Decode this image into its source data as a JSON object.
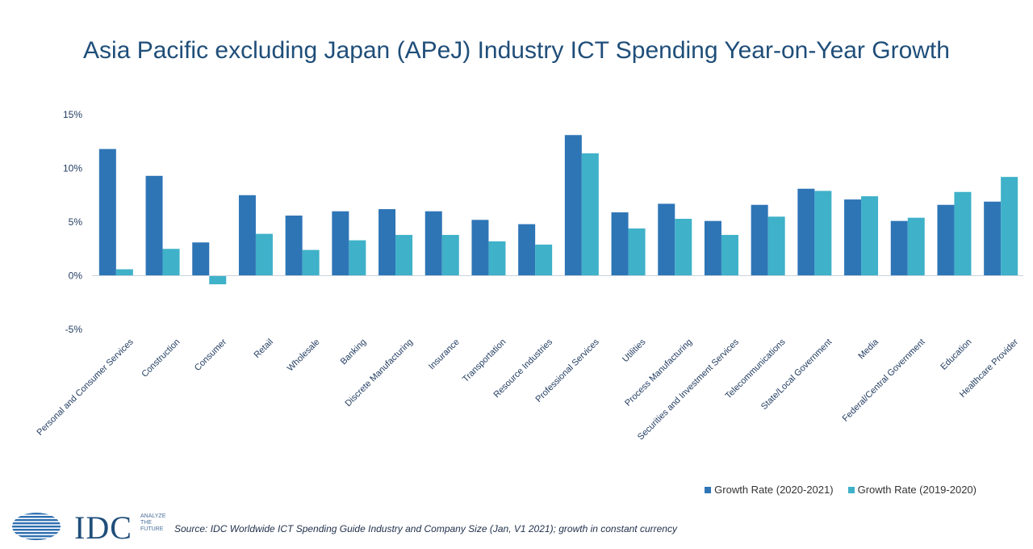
{
  "title": "Asia Pacific excluding Japan (APeJ) Industry ICT Spending Year-on-Year Growth",
  "source": "Source: IDC Worldwide ICT Spending Guide Industry and Company Size (Jan, V1 2021); growth in constant currency",
  "brand": {
    "logo_text": "IDC",
    "tagline_lines": [
      "ANALYZE",
      "THE",
      "FUTURE"
    ]
  },
  "legend": [
    {
      "label": "Growth Rate (2020-2021)",
      "color": "#2e75b6"
    },
    {
      "label": "Growth Rate (2019-2020)",
      "color": "#3fb1c9"
    }
  ],
  "chart_data": {
    "type": "bar",
    "title": "Asia Pacific excluding Japan (APeJ) Industry ICT Spending Year-on-Year Growth",
    "xlabel": "",
    "ylabel": "",
    "ylim": [
      -5,
      15
    ],
    "yticks": [
      15,
      10,
      5,
      0,
      -5
    ],
    "ytick_labels": [
      "15%",
      "10%",
      "5%",
      "0%",
      "-5%"
    ],
    "grid": false,
    "legend_position": "bottom-right",
    "categories": [
      "Personal and Consumer Services",
      "Construction",
      "Consumer",
      "Retail",
      "Wholesale",
      "Banking",
      "Discrete Manufacturing",
      "Insurance",
      "Transportation",
      "Resource Industries",
      "Professional Services",
      "Utilities",
      "Process Manufacturing",
      "Securities and Investment Services",
      "Telecommunications",
      "State/Local Government",
      "Media",
      "Federal/Central Government",
      "Education",
      "Healthcare Provider"
    ],
    "series": [
      {
        "name": "Growth Rate (2020-2021)",
        "color": "#2e75b6",
        "values": [
          11.8,
          9.3,
          3.1,
          7.5,
          5.6,
          6.0,
          6.2,
          6.0,
          5.2,
          4.8,
          13.1,
          5.9,
          6.7,
          5.1,
          6.6,
          8.1,
          7.1,
          5.1,
          6.6,
          6.9
        ]
      },
      {
        "name": "Growth Rate (2019-2020)",
        "color": "#3fb1c9",
        "values": [
          0.6,
          2.5,
          -0.8,
          3.9,
          2.4,
          3.3,
          3.8,
          3.8,
          3.2,
          2.9,
          11.4,
          4.4,
          5.3,
          3.8,
          5.5,
          7.9,
          7.4,
          5.4,
          7.8,
          9.2
        ]
      }
    ]
  }
}
